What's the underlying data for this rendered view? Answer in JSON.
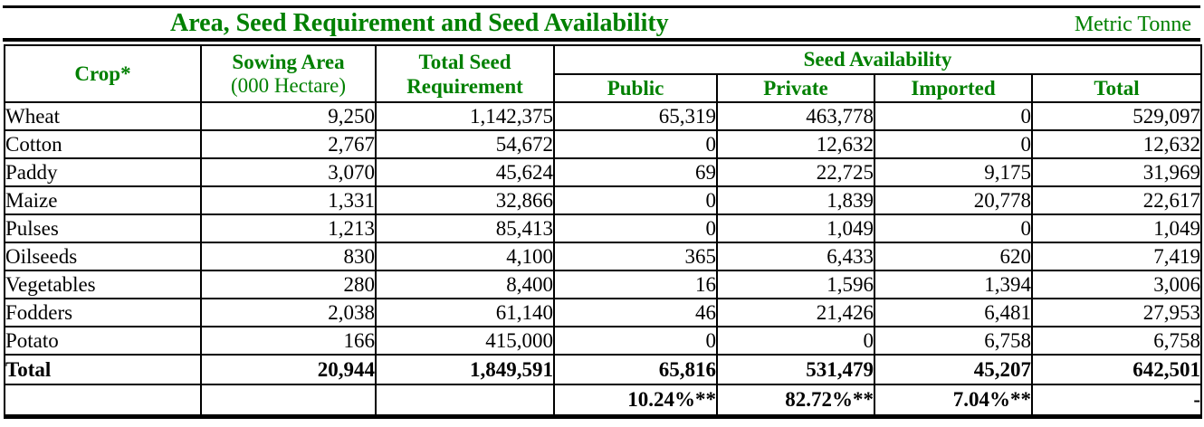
{
  "title": "Area, Seed Requirement and Seed Availability",
  "unit_label": "Metric Tonne",
  "colors": {
    "accent_green": "#008000",
    "border_black": "#000000",
    "background": "#ffffff"
  },
  "table": {
    "headers": {
      "crop": "Crop*",
      "sowing_area_line1": "Sowing Area",
      "sowing_area_line2": "(000 Hectare)",
      "total_seed_line1": "Total Seed",
      "total_seed_line2": "Requirement",
      "seed_availability": "Seed Availability",
      "sub": [
        "Public",
        "Private",
        "Imported",
        "Total"
      ]
    },
    "rows": [
      {
        "crop": "Wheat",
        "sowing_area": "9,250",
        "total_seed_requirement": "1,142,375",
        "public": "65,319",
        "private": "463,778",
        "imported": "0",
        "total": "529,097"
      },
      {
        "crop": "Cotton",
        "sowing_area": "2,767",
        "total_seed_requirement": "54,672",
        "public": "0",
        "private": "12,632",
        "imported": "0",
        "total": "12,632"
      },
      {
        "crop": "Paddy",
        "sowing_area": "3,070",
        "total_seed_requirement": "45,624",
        "public": "69",
        "private": "22,725",
        "imported": "9,175",
        "total": "31,969"
      },
      {
        "crop": "Maize",
        "sowing_area": "1,331",
        "total_seed_requirement": "32,866",
        "public": "0",
        "private": "1,839",
        "imported": "20,778",
        "total": "22,617"
      },
      {
        "crop": "Pulses",
        "sowing_area": "1,213",
        "total_seed_requirement": "85,413",
        "public": "0",
        "private": "1,049",
        "imported": "0",
        "total": "1,049"
      },
      {
        "crop": "Oilseeds",
        "sowing_area": "830",
        "total_seed_requirement": "4,100",
        "public": "365",
        "private": "6,433",
        "imported": "620",
        "total": "7,419"
      },
      {
        "crop": "Vegetables",
        "sowing_area": "280",
        "total_seed_requirement": "8,400",
        "public": "16",
        "private": "1,596",
        "imported": "1,394",
        "total": "3,006"
      },
      {
        "crop": "Fodders",
        "sowing_area": "2,038",
        "total_seed_requirement": "61,140",
        "public": "46",
        "private": "21,426",
        "imported": "6,481",
        "total": "27,953"
      },
      {
        "crop": "Potato",
        "sowing_area": "166",
        "total_seed_requirement": "415,000",
        "public": "0",
        "private": "0",
        "imported": "6,758",
        "total": "6,758"
      }
    ],
    "total_row": {
      "crop": "Total",
      "sowing_area": "20,944",
      "total_seed_requirement": "1,849,591",
      "public": "65,816",
      "private": "531,479",
      "imported": "45,207",
      "total": "642,501"
    },
    "percent_row": {
      "crop": "",
      "sowing_area": "",
      "total_seed_requirement": "",
      "public": "10.24%**",
      "private": "82.72%**",
      "imported": "7.04%**",
      "total": "-"
    }
  }
}
